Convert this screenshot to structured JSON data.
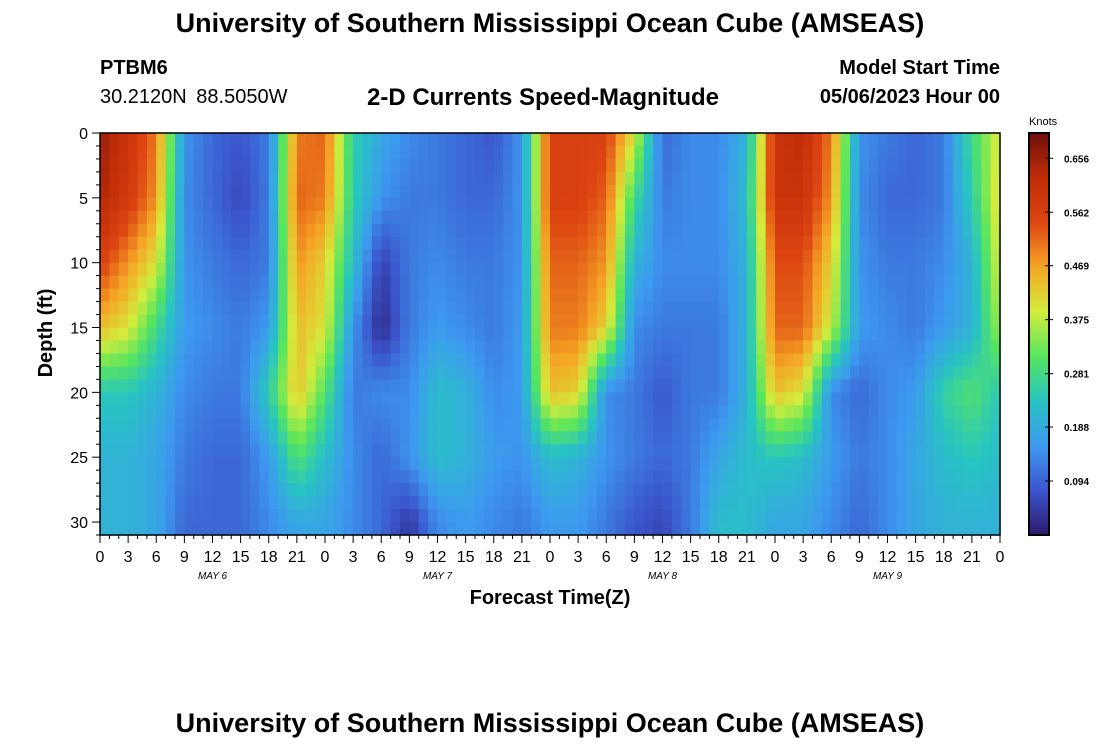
{
  "page": {
    "title": "University of Southern Mississippi Ocean Cube (AMSEAS)",
    "footer_title": "University of Southern Mississippi Ocean Cube (AMSEAS)",
    "station": "PTBM6",
    "coordinates": "30.2120N  88.5050W",
    "subtitle": "2-D Currents Speed-Magnitude",
    "model_start_label": "Model Start Time",
    "model_start_value": "05/06/2023 Hour 00"
  },
  "chart_data": {
    "type": "heatmap",
    "title": "2-D Currents Speed-Magnitude",
    "xlabel": "Forecast Time(Z)",
    "ylabel": "Depth (ft)",
    "x_range_hours": [
      0,
      96
    ],
    "ylim": [
      0,
      31
    ],
    "y_inverted": true,
    "x_tick_labels": [
      "0",
      "3",
      "6",
      "9",
      "12",
      "15",
      "18",
      "21",
      "0",
      "3",
      "6",
      "9",
      "12",
      "15",
      "18",
      "21",
      "0",
      "3",
      "6",
      "9",
      "12",
      "15",
      "18",
      "21",
      "0",
      "3",
      "6",
      "9",
      "12",
      "15",
      "18",
      "21",
      "0"
    ],
    "y_ticks": [
      0,
      5,
      10,
      15,
      20,
      25,
      30
    ],
    "day_labels": [
      "MAY 6",
      "MAY 7",
      "MAY 8",
      "MAY 9"
    ],
    "day_label_hours": [
      12,
      36,
      60,
      84
    ],
    "colorbar": {
      "unit": "Knots",
      "tick_labels": [
        "0.656",
        "0.562",
        "0.469",
        "0.375",
        "0.281",
        "0.188",
        "0.094"
      ],
      "min": 0.0,
      "max": 0.7
    },
    "grid_axes": {
      "time_hours": [
        0,
        3,
        6,
        9,
        12,
        15,
        18,
        21,
        24,
        27,
        30,
        33,
        36,
        39,
        42,
        45,
        48,
        51,
        54,
        57,
        60,
        63,
        66,
        69,
        72,
        75,
        78,
        81,
        84,
        87,
        90,
        93,
        96
      ],
      "depth_ft": [
        0,
        5,
        10,
        15,
        20,
        25,
        30
      ]
    },
    "speed_knots": [
      [
        0.66,
        0.6,
        0.5,
        0.15,
        0.1,
        0.08,
        0.12,
        0.5,
        0.52,
        0.25,
        0.18,
        0.14,
        0.12,
        0.1,
        0.08,
        0.15,
        0.56,
        0.56,
        0.56,
        0.4,
        0.1,
        0.14,
        0.14,
        0.2,
        0.6,
        0.62,
        0.5,
        0.15,
        0.12,
        0.1,
        0.12,
        0.28,
        0.4
      ],
      [
        0.64,
        0.58,
        0.48,
        0.14,
        0.1,
        0.06,
        0.12,
        0.52,
        0.5,
        0.25,
        0.15,
        0.12,
        0.12,
        0.1,
        0.1,
        0.15,
        0.56,
        0.56,
        0.52,
        0.28,
        0.12,
        0.14,
        0.14,
        0.22,
        0.6,
        0.6,
        0.48,
        0.14,
        0.1,
        0.1,
        0.12,
        0.25,
        0.42
      ],
      [
        0.56,
        0.48,
        0.4,
        0.15,
        0.12,
        0.1,
        0.12,
        0.48,
        0.42,
        0.22,
        0.05,
        0.12,
        0.14,
        0.12,
        0.12,
        0.15,
        0.52,
        0.52,
        0.48,
        0.2,
        0.14,
        0.14,
        0.14,
        0.2,
        0.54,
        0.54,
        0.42,
        0.15,
        0.12,
        0.12,
        0.14,
        0.2,
        0.4
      ],
      [
        0.44,
        0.4,
        0.28,
        0.16,
        0.14,
        0.12,
        0.16,
        0.44,
        0.4,
        0.15,
        0.02,
        0.12,
        0.16,
        0.14,
        0.12,
        0.16,
        0.5,
        0.5,
        0.42,
        0.14,
        0.12,
        0.12,
        0.12,
        0.2,
        0.52,
        0.52,
        0.38,
        0.16,
        0.14,
        0.12,
        0.16,
        0.2,
        0.36
      ],
      [
        0.24,
        0.24,
        0.2,
        0.14,
        0.12,
        0.12,
        0.25,
        0.44,
        0.3,
        0.12,
        0.14,
        0.14,
        0.22,
        0.2,
        0.14,
        0.16,
        0.44,
        0.42,
        0.14,
        0.12,
        0.08,
        0.12,
        0.12,
        0.2,
        0.44,
        0.4,
        0.14,
        0.1,
        0.14,
        0.16,
        0.26,
        0.3,
        0.24
      ],
      [
        0.2,
        0.2,
        0.18,
        0.12,
        0.1,
        0.1,
        0.16,
        0.3,
        0.22,
        0.14,
        0.1,
        0.15,
        0.22,
        0.2,
        0.16,
        0.15,
        0.22,
        0.2,
        0.15,
        0.12,
        0.1,
        0.12,
        0.18,
        0.22,
        0.24,
        0.22,
        0.16,
        0.12,
        0.14,
        0.18,
        0.22,
        0.24,
        0.22
      ],
      [
        0.2,
        0.2,
        0.18,
        0.1,
        0.1,
        0.1,
        0.14,
        0.18,
        0.18,
        0.14,
        0.1,
        0.04,
        0.14,
        0.16,
        0.14,
        0.12,
        0.16,
        0.16,
        0.12,
        0.08,
        0.06,
        0.12,
        0.22,
        0.22,
        0.18,
        0.18,
        0.14,
        0.1,
        0.14,
        0.18,
        0.2,
        0.2,
        0.2
      ]
    ]
  },
  "colors": {
    "colormap": [
      "#2c1a6c",
      "#3b55cc",
      "#3d99f0",
      "#28c4c2",
      "#57e55e",
      "#d3ec3c",
      "#f5a626",
      "#dd4512",
      "#c02d07",
      "#6e0e0a"
    ],
    "axis": "#000000",
    "background": "#ffffff"
  }
}
